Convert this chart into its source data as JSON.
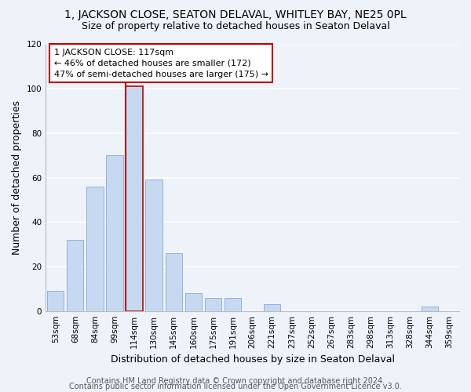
{
  "title": "1, JACKSON CLOSE, SEATON DELAVAL, WHITLEY BAY, NE25 0PL",
  "subtitle": "Size of property relative to detached houses in Seaton Delaval",
  "xlabel": "Distribution of detached houses by size in Seaton Delaval",
  "ylabel": "Number of detached properties",
  "bar_labels": [
    "53sqm",
    "68sqm",
    "84sqm",
    "99sqm",
    "114sqm",
    "130sqm",
    "145sqm",
    "160sqm",
    "175sqm",
    "191sqm",
    "206sqm",
    "221sqm",
    "237sqm",
    "252sqm",
    "267sqm",
    "283sqm",
    "298sqm",
    "313sqm",
    "328sqm",
    "344sqm",
    "359sqm"
  ],
  "bar_values": [
    9,
    32,
    56,
    70,
    101,
    59,
    26,
    8,
    6,
    6,
    0,
    3,
    0,
    0,
    0,
    0,
    0,
    0,
    0,
    2,
    0
  ],
  "bar_color": "#c6d9f1",
  "bar_edge_color": "#8eb4d8",
  "highlight_bar_index": 4,
  "highlight_bar_edge_color": "#c00000",
  "vline_color": "#c00000",
  "ylim": [
    0,
    120
  ],
  "yticks": [
    0,
    20,
    40,
    60,
    80,
    100,
    120
  ],
  "annotation_text": "1 JACKSON CLOSE: 117sqm\n← 46% of detached houses are smaller (172)\n47% of semi-detached houses are larger (175) →",
  "annotation_box_edge": "#c00000",
  "footer1": "Contains HM Land Registry data © Crown copyright and database right 2024.",
  "footer2": "Contains public sector information licensed under the Open Government Licence v3.0.",
  "bg_color": "#eef2f9",
  "grid_color": "white",
  "title_fontsize": 10,
  "subtitle_fontsize": 9,
  "axis_label_fontsize": 9,
  "tick_fontsize": 7.5,
  "footer_fontsize": 7
}
